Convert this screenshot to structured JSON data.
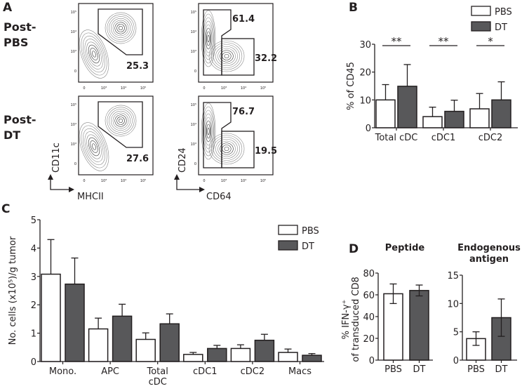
{
  "panels": {
    "A": {
      "label": "A",
      "rows": [
        {
          "label_line1": "Post-",
          "label_line2": "PBS",
          "gates": {
            "mhcii_cd11c": "25.3",
            "cd24_high": "61.4",
            "cd64_high": "32.2"
          }
        },
        {
          "label_line1": "Post-",
          "label_line2": "DT",
          "gates": {
            "mhcii_cd11c": "27.6",
            "cd24_high": "76.7",
            "cd64_high": "19.5"
          }
        }
      ],
      "plot1_axes": {
        "x": "MHCII",
        "y": "CD11c"
      },
      "plot2_axes": {
        "x": "CD64",
        "y": "CD24"
      },
      "flow_ticks": [
        "0",
        "10³",
        "10⁴",
        "10⁵"
      ]
    },
    "B": {
      "label": "B"
    },
    "C": {
      "label": "C"
    },
    "D": {
      "label": "D",
      "ylabel_line1": "% IFN-γ⁺",
      "ylabel_line2": "of transduced CD8"
    }
  },
  "colors": {
    "PBS": "#ffffff",
    "DT": "#58585a",
    "stroke": "#231f20"
  },
  "chart_data": [
    {
      "id": "B",
      "type": "bar",
      "title": "",
      "xlabel": "",
      "ylabel": "% of CD45",
      "ylim": [
        0,
        30
      ],
      "yticks": [
        "0",
        "10",
        "20",
        "30"
      ],
      "categories": [
        "Total cDC",
        "cDC1",
        "cDC2"
      ],
      "series": [
        {
          "name": "PBS",
          "values": [
            10,
            4,
            6.8
          ],
          "errors": [
            5.5,
            3.4,
            5.5
          ]
        },
        {
          "name": "DT",
          "values": [
            14.9,
            5.9,
            10
          ],
          "errors": [
            7.8,
            4,
            6.5
          ]
        }
      ],
      "significance": [
        "**",
        "**",
        "*"
      ],
      "legend": [
        "PBS",
        "DT"
      ],
      "legend_position": "top-right"
    },
    {
      "id": "C",
      "type": "bar",
      "title": "",
      "xlabel": "",
      "ylabel": "No. cells (x10⁵)/g tumor",
      "ylim": [
        0,
        5
      ],
      "yticks": [
        "0",
        "1",
        "2",
        "3",
        "4",
        "5"
      ],
      "categories": [
        "Mono.",
        "APC",
        "Total cDC",
        "cDC1",
        "cDC2",
        "Macs"
      ],
      "series": [
        {
          "name": "PBS",
          "values": [
            3.08,
            1.15,
            0.78,
            0.25,
            0.46,
            0.32
          ],
          "errors": [
            1.22,
            0.38,
            0.23,
            0.07,
            0.13,
            0.12
          ]
        },
        {
          "name": "DT",
          "values": [
            2.73,
            1.6,
            1.33,
            0.46,
            0.75,
            0.22
          ],
          "errors": [
            0.92,
            0.42,
            0.35,
            0.11,
            0.21,
            0.06
          ]
        }
      ],
      "legend": [
        "PBS",
        "DT"
      ],
      "legend_position": "top-right"
    },
    {
      "id": "D1",
      "type": "bar",
      "title": "Peptide",
      "ylim": [
        0,
        80
      ],
      "yticks": [
        "0",
        "20",
        "40",
        "60",
        "80"
      ],
      "categories": [
        "PBS",
        "DT"
      ],
      "values": [
        61,
        64
      ],
      "errors": [
        9,
        5
      ]
    },
    {
      "id": "D2",
      "type": "bar",
      "title_line1": "Endogenous",
      "title_line2": "antigen",
      "ylim": [
        0,
        15
      ],
      "yticks": [
        "0",
        "5",
        "10",
        "15"
      ],
      "categories": [
        "PBS",
        "DT"
      ],
      "values": [
        3.8,
        7.5
      ],
      "errors": [
        1.2,
        3.3
      ]
    }
  ]
}
